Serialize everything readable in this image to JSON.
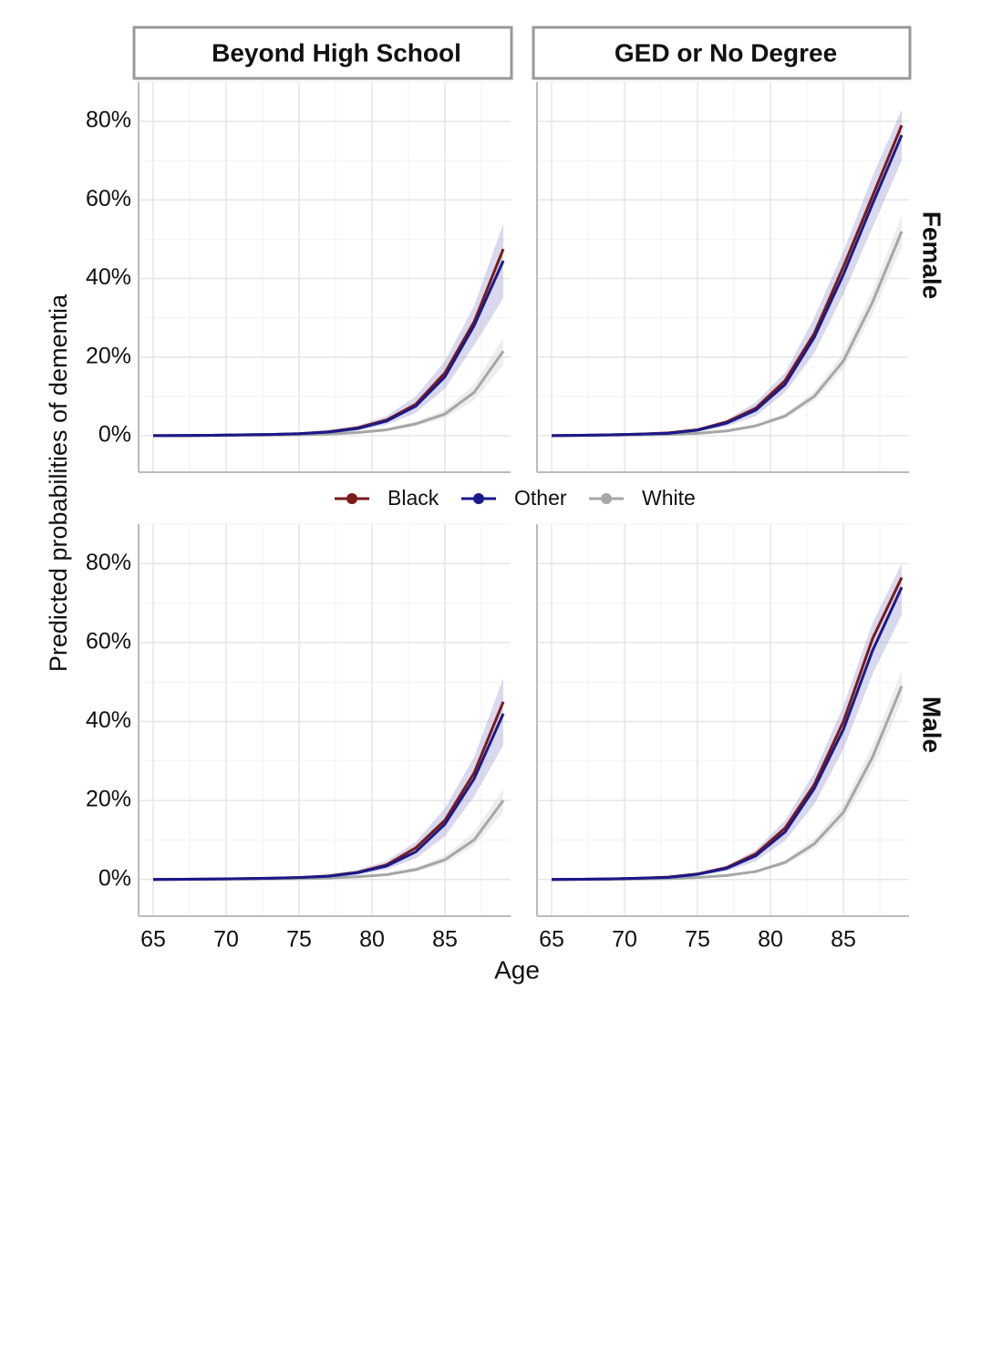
{
  "strips": {
    "columns": [
      "Beyond High School",
      "GED or No Degree"
    ],
    "rows": [
      "Female",
      "Male"
    ]
  },
  "x_label": "Age",
  "y_label": "Predicted probabilities of dementia",
  "legend": {
    "series": [
      {
        "name": "Black",
        "color": "#7a1a1a"
      },
      {
        "name": "Other",
        "color": "#1a1a8c"
      },
      {
        "name": "White",
        "color": "#a6a6a6"
      }
    ]
  },
  "chart_data": [
    {
      "type": "line",
      "x": [
        65,
        67,
        69,
        71,
        73,
        75,
        77,
        79,
        81,
        83,
        85,
        87,
        89
      ],
      "series": [
        {
          "values": [
            0,
            0.05,
            0.1,
            0.2,
            0.3,
            0.5,
            1,
            2,
            4,
            8,
            16,
            29,
            47.5
          ]
        },
        {
          "values": [
            0,
            0.05,
            0.1,
            0.2,
            0.3,
            0.5,
            0.9,
            1.8,
            3.7,
            7.5,
            15,
            28,
            44.5
          ],
          "lower": [
            0,
            0,
            0.05,
            0.1,
            0.2,
            0.3,
            0.6,
            1.3,
            2.8,
            5.8,
            12,
            23,
            35
          ],
          "upper": [
            0,
            0.1,
            0.2,
            0.3,
            0.4,
            0.7,
            1.3,
            2.5,
            5,
            10,
            19,
            33,
            54
          ]
        },
        {
          "values": [
            0,
            0,
            0.05,
            0.1,
            0.15,
            0.25,
            0.4,
            0.8,
            1.5,
            3,
            5.5,
            11,
            21.5
          ],
          "lower": [
            0,
            0,
            0,
            0.05,
            0.1,
            0.2,
            0.3,
            0.6,
            1.2,
            2.4,
            4.5,
            9,
            18
          ],
          "upper": [
            0,
            0.05,
            0.1,
            0.15,
            0.2,
            0.3,
            0.5,
            1,
            1.9,
            3.6,
            6.6,
            13,
            25
          ]
        }
      ],
      "xlim": [
        64,
        89.5
      ],
      "xticks": [
        65,
        70,
        75,
        80,
        85
      ],
      "ylim": [
        -9.3,
        90
      ],
      "yticks": [
        {
          "value": 0,
          "label": "0%"
        },
        {
          "value": 20,
          "label": "20%"
        },
        {
          "value": 40,
          "label": "40%"
        },
        {
          "value": 60,
          "label": "60%"
        },
        {
          "value": 80,
          "label": "80%"
        }
      ],
      "grid": true
    },
    {
      "type": "line",
      "x": [
        65,
        67,
        69,
        71,
        73,
        75,
        77,
        79,
        81,
        83,
        85,
        87,
        89
      ],
      "series": [
        {
          "values": [
            0,
            0.1,
            0.2,
            0.4,
            0.7,
            1.5,
            3.5,
            7,
            14,
            26,
            43,
            61,
            79
          ]
        },
        {
          "values": [
            0,
            0.1,
            0.2,
            0.4,
            0.6,
            1.4,
            3.2,
            6.5,
            13,
            25,
            41,
            59,
            76.5
          ],
          "lower": [
            0,
            0.05,
            0.1,
            0.3,
            0.4,
            1,
            2.4,
            5,
            11,
            21,
            36,
            53,
            70
          ],
          "upper": [
            0,
            0.15,
            0.3,
            0.5,
            0.8,
            1.8,
            4,
            8.5,
            16,
            30,
            47,
            66,
            83
          ]
        },
        {
          "values": [
            0,
            0,
            0.1,
            0.2,
            0.3,
            0.6,
            1.2,
            2.5,
            5,
            10,
            19,
            34,
            52
          ],
          "lower": [
            0,
            0,
            0.05,
            0.15,
            0.2,
            0.5,
            1,
            2.1,
            4.3,
            8.8,
            17,
            31,
            48
          ],
          "upper": [
            0,
            0.05,
            0.15,
            0.25,
            0.4,
            0.7,
            1.4,
            2.9,
            5.7,
            11.2,
            21,
            37,
            56
          ]
        }
      ],
      "xlim": [
        64,
        89.5
      ],
      "xticks": [
        65,
        70,
        75,
        80,
        85
      ],
      "ylim": [
        -9.3,
        90
      ],
      "yticks": [
        {
          "value": 0,
          "label": "0%"
        },
        {
          "value": 20,
          "label": "20%"
        },
        {
          "value": 40,
          "label": "40%"
        },
        {
          "value": 60,
          "label": "60%"
        },
        {
          "value": 80,
          "label": "80%"
        }
      ],
      "grid": true
    },
    {
      "type": "line",
      "x": [
        65,
        67,
        69,
        71,
        73,
        75,
        77,
        79,
        81,
        83,
        85,
        87,
        89
      ],
      "series": [
        {
          "values": [
            0,
            0.05,
            0.1,
            0.2,
            0.3,
            0.5,
            0.9,
            1.8,
            3.7,
            8,
            15,
            27,
            45
          ]
        },
        {
          "values": [
            0,
            0.05,
            0.1,
            0.2,
            0.3,
            0.5,
            0.8,
            1.7,
            3.4,
            7,
            14,
            25.5,
            42
          ],
          "lower": [
            0,
            0,
            0.05,
            0.1,
            0.2,
            0.3,
            0.5,
            1.2,
            2.5,
            5.3,
            11,
            21,
            34
          ],
          "upper": [
            0,
            0.1,
            0.2,
            0.3,
            0.4,
            0.7,
            1.2,
            2.4,
            4.7,
            9.5,
            18,
            31,
            51
          ]
        },
        {
          "values": [
            0,
            0,
            0.05,
            0.1,
            0.15,
            0.2,
            0.35,
            0.7,
            1.2,
            2.5,
            5,
            10,
            20
          ],
          "lower": [
            0,
            0,
            0,
            0.05,
            0.1,
            0.15,
            0.25,
            0.5,
            1,
            2,
            4,
            8.5,
            17
          ],
          "upper": [
            0,
            0.05,
            0.1,
            0.15,
            0.2,
            0.3,
            0.45,
            0.9,
            1.6,
            3,
            6,
            12,
            23
          ]
        }
      ],
      "xlim": [
        64,
        89.5
      ],
      "xticks": [
        65,
        70,
        75,
        80,
        85
      ],
      "ylim": [
        -9.3,
        90
      ],
      "yticks": [
        {
          "value": 0,
          "label": "0%"
        },
        {
          "value": 20,
          "label": "20%"
        },
        {
          "value": 40,
          "label": "40%"
        },
        {
          "value": 60,
          "label": "60%"
        },
        {
          "value": 80,
          "label": "80%"
        }
      ],
      "grid": true
    },
    {
      "type": "line",
      "x": [
        65,
        67,
        69,
        71,
        73,
        75,
        77,
        79,
        81,
        83,
        85,
        87,
        89
      ],
      "series": [
        {
          "values": [
            0,
            0.05,
            0.15,
            0.3,
            0.6,
            1.4,
            3,
            6.5,
            13,
            24,
            40,
            61,
            76.5
          ]
        },
        {
          "values": [
            0,
            0.05,
            0.15,
            0.3,
            0.5,
            1.3,
            2.8,
            6,
            12,
            23,
            38,
            58,
            74
          ],
          "lower": [
            0,
            0,
            0.1,
            0.2,
            0.4,
            1,
            2.1,
            4.6,
            9.8,
            19,
            33,
            52,
            67
          ],
          "upper": [
            0,
            0.1,
            0.2,
            0.4,
            0.7,
            1.6,
            3.5,
            7.5,
            15,
            27,
            44,
            65,
            80
          ]
        },
        {
          "values": [
            0,
            0,
            0.05,
            0.1,
            0.2,
            0.5,
            1,
            2,
            4.3,
            9,
            17,
            31,
            49
          ],
          "lower": [
            0,
            0,
            0,
            0.05,
            0.15,
            0.4,
            0.8,
            1.7,
            3.7,
            7.8,
            15,
            28,
            45
          ],
          "upper": [
            0,
            0.05,
            0.1,
            0.15,
            0.3,
            0.6,
            1.2,
            2.4,
            5,
            10.3,
            19,
            34,
            53
          ]
        }
      ],
      "xlim": [
        64,
        89.5
      ],
      "xticks": [
        65,
        70,
        75,
        80,
        85
      ],
      "ylim": [
        -9.3,
        90
      ],
      "yticks": [
        {
          "value": 0,
          "label": "0%"
        },
        {
          "value": 20,
          "label": "20%"
        },
        {
          "value": 40,
          "label": "40%"
        },
        {
          "value": 60,
          "label": "60%"
        },
        {
          "value": 80,
          "label": "80%"
        }
      ],
      "grid": true
    }
  ]
}
